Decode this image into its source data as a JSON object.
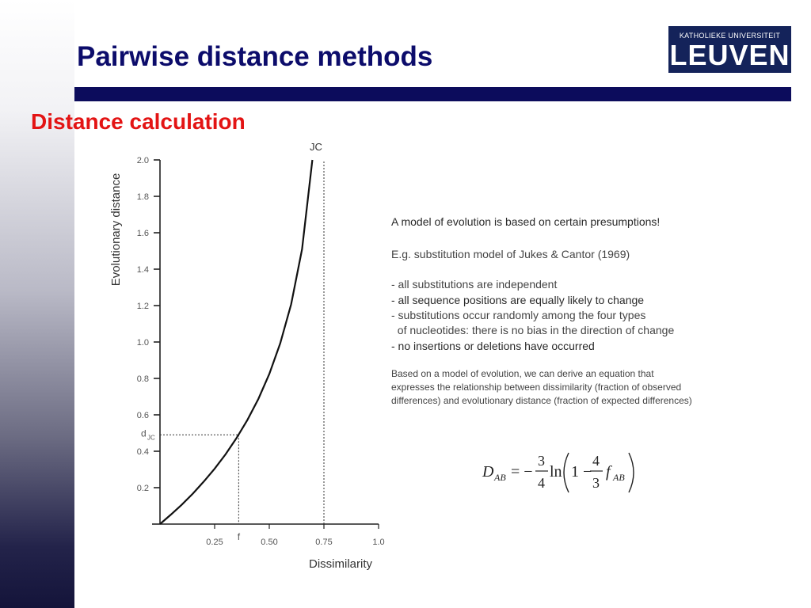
{
  "slide": {
    "title": "Pairwise distance methods",
    "subtitle": "Distance calculation"
  },
  "logo": {
    "top_line": "KATHOLIEKE UNIVERSITEIT",
    "main_line": "LEUVEN",
    "background_color": "#14235a"
  },
  "colors": {
    "title": "#0c0c6b",
    "subtitle": "#e31414",
    "rule": "#0c0c5c"
  },
  "chart_data": {
    "type": "line",
    "xlabel": "Dissimilarity",
    "ylabel": "Evolutionary distance",
    "xlim": [
      0,
      1.0
    ],
    "ylim": [
      0,
      2.0
    ],
    "x_ticks": [
      0.25,
      0.5,
      0.75,
      1.0
    ],
    "x_tick_labels": [
      "0.25",
      "0.50",
      "0.75",
      "1.0"
    ],
    "y_ticks": [
      0.2,
      0.4,
      0.6,
      0.8,
      1.0,
      1.2,
      1.4,
      1.6,
      1.8,
      2.0
    ],
    "y_tick_labels": [
      "0.2",
      "0.4",
      "0.6",
      "0.8",
      "1.0",
      "1.2",
      "1.4",
      "1.6",
      "1.8",
      "2.0"
    ],
    "series": [
      {
        "name": "JC",
        "x": [
          0.0,
          0.05,
          0.1,
          0.15,
          0.2,
          0.25,
          0.3,
          0.35,
          0.4,
          0.45,
          0.5,
          0.55,
          0.6,
          0.65,
          0.7,
          0.72
        ],
        "y": [
          0.0,
          0.052,
          0.107,
          0.167,
          0.233,
          0.304,
          0.383,
          0.472,
          0.572,
          0.687,
          0.824,
          0.992,
          1.207,
          1.51,
          2.031,
          2.41
        ]
      }
    ],
    "asymptote_x": 0.75,
    "marker": {
      "f": 0.36,
      "d_jc": 0.49,
      "f_label": "f",
      "d_label": "d",
      "d_sub": "JC"
    },
    "grid": false
  },
  "text_block": {
    "line1": "A model of evolution is based on certain presumptions!",
    "line2": "E.g. substitution model of Jukes & Cantor (1969)",
    "bullets": [
      "- all substitutions are independent",
      "- all sequence positions are equally likely to change",
      "- substitutions occur randomly among the four types",
      "  of nucleotides: there is no bias in the direction of change",
      "- no insertions or deletions have occurred"
    ],
    "paragraph": [
      "Based on a model of evolution, we can derive an equation that",
      "expresses the relationship between dissimilarity (fraction of observed",
      "differences) and evolutionary distance (fraction of expected differences)"
    ]
  },
  "equation": {
    "lhs": "D",
    "lhs_sub": "AB",
    "equals_minus": "= −",
    "frac1_num": "3",
    "frac1_den": "4",
    "ln": "ln",
    "one_minus": "1 −",
    "frac2_num": "4",
    "frac2_den": "3",
    "f": "f",
    "f_sub": "AB"
  }
}
